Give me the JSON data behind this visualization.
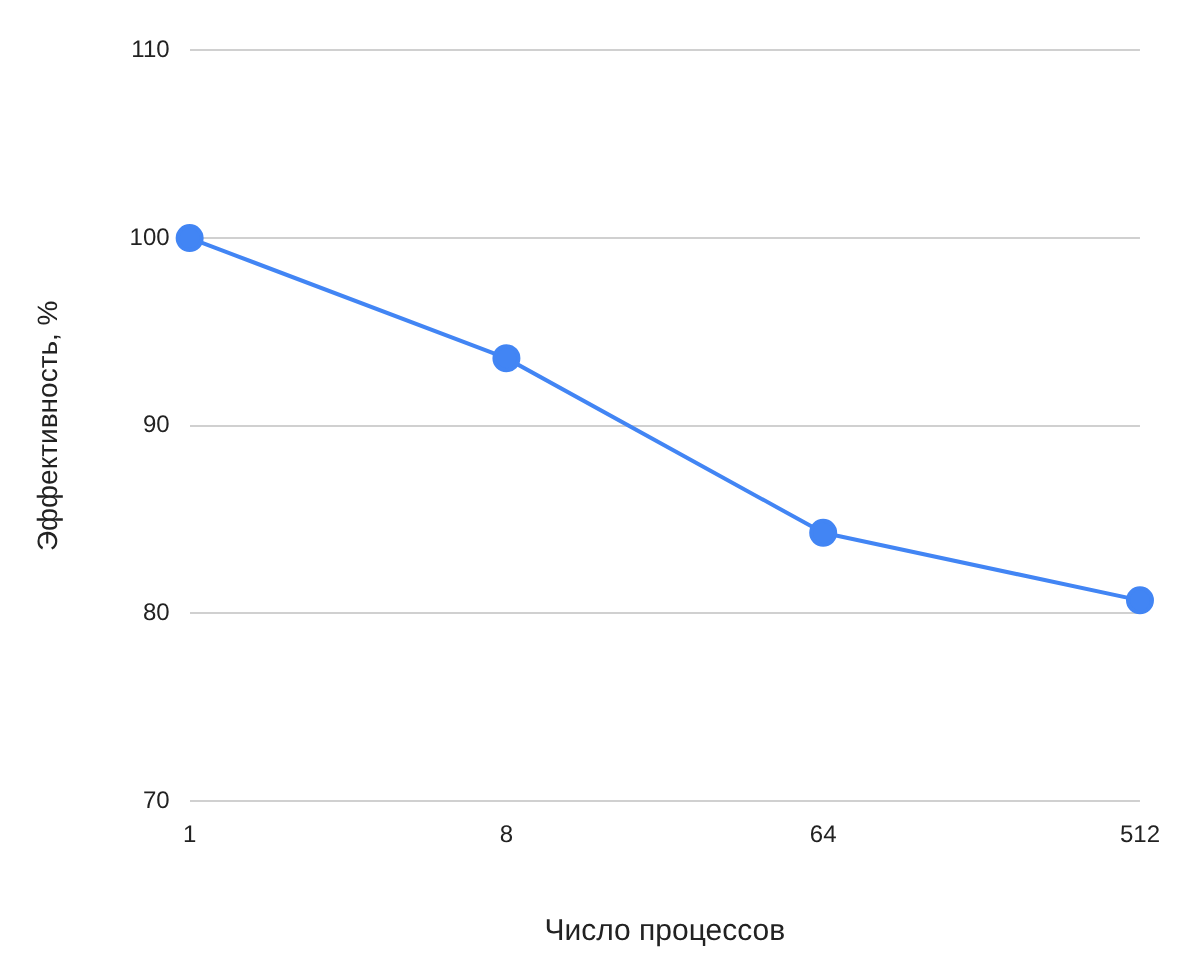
{
  "chart_data": {
    "type": "line",
    "xlabel": "Число процессов",
    "ylabel": "Эффективность, %",
    "categories": [
      "1",
      "8",
      "64",
      "512"
    ],
    "series": [
      {
        "color": "#4285f4",
        "values": [
          100,
          93.6,
          84.3,
          80.7
        ]
      }
    ],
    "ylim": [
      70,
      110
    ],
    "yticks": [
      70,
      80,
      90,
      100,
      110
    ],
    "grid": "y",
    "legend": false,
    "marker": "circle",
    "line_style": "solid"
  }
}
